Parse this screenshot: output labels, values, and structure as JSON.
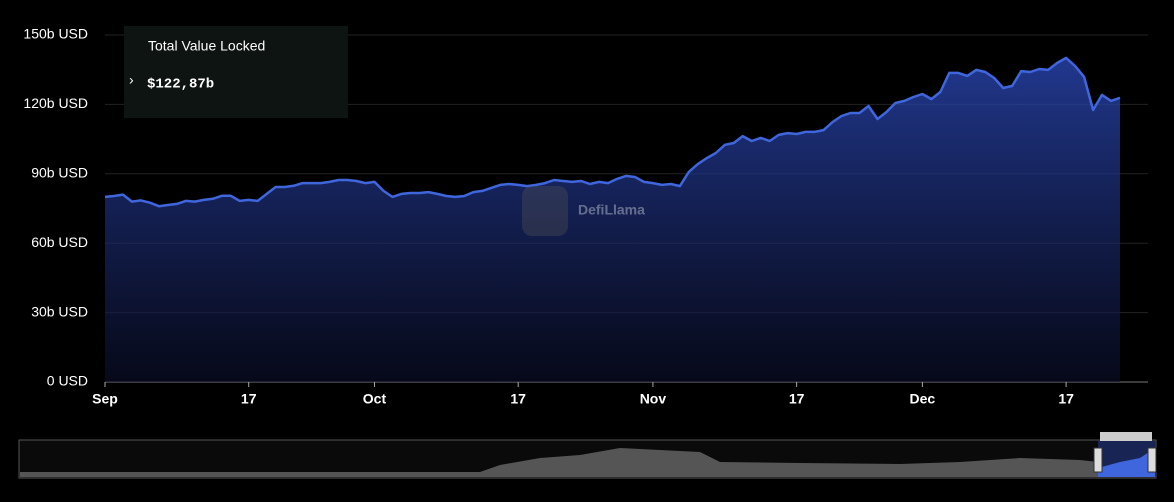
{
  "chart_data": {
    "type": "area",
    "series": [
      {
        "name": "Total Value Locked",
        "color": "#3f66dc",
        "values": [
          80.0,
          80.4,
          81.0,
          78.0,
          78.5,
          77.5,
          76.0,
          76.5,
          77.0,
          78.3,
          78.0,
          78.7,
          79.2,
          80.5,
          80.5,
          78.3,
          78.7,
          78.3,
          81.3,
          84.3,
          84.3,
          84.8,
          86.0,
          86.0,
          86.0,
          86.5,
          87.3,
          87.3,
          86.9,
          86.0,
          86.5,
          82.6,
          80.0,
          81.3,
          81.7,
          81.7,
          82.1,
          81.3,
          80.4,
          80.0,
          80.4,
          82.1,
          82.6,
          83.9,
          85.2,
          85.6,
          85.2,
          84.7,
          85.2,
          86.0,
          87.3,
          86.9,
          86.5,
          86.9,
          85.6,
          86.5,
          86.0,
          87.8,
          89.1,
          88.6,
          86.5,
          86.0,
          85.2,
          85.6,
          84.7,
          90.8,
          94.2,
          96.8,
          99.0,
          102.5,
          103.3,
          106.3,
          104.2,
          105.5,
          104.2,
          106.8,
          107.6,
          107.2,
          108.1,
          108.1,
          108.9,
          112.4,
          115.0,
          116.3,
          116.3,
          119.3,
          113.7,
          116.7,
          120.6,
          121.5,
          123.2,
          124.5,
          122.3,
          125.4,
          133.6,
          133.6,
          132.3,
          134.9,
          134.0,
          131.4,
          127.1,
          128.0,
          134.4,
          134.0,
          135.3,
          134.9,
          137.9,
          140.1,
          136.6,
          131.9,
          117.6,
          124.1,
          121.5,
          122.87
        ]
      }
    ],
    "categories": [
      "Sep",
      null,
      null,
      null,
      null,
      null,
      null,
      null,
      null,
      null,
      null,
      null,
      null,
      null,
      null,
      null,
      "17",
      null,
      null,
      null,
      null,
      null,
      null,
      null,
      null,
      null,
      null,
      null,
      null,
      null,
      "Oct",
      null,
      null,
      null,
      null,
      null,
      null,
      null,
      null,
      null,
      null,
      null,
      null,
      null,
      null,
      null,
      "17",
      null,
      null,
      null,
      null,
      null,
      null,
      null,
      null,
      null,
      null,
      null,
      null,
      null,
      null,
      "Nov",
      null,
      null,
      null,
      null,
      null,
      null,
      null,
      null,
      null,
      null,
      null,
      null,
      null,
      null,
      null,
      "17",
      null,
      null,
      null,
      null,
      null,
      null,
      null,
      null,
      null,
      null,
      null,
      null,
      null,
      "Dec",
      null,
      null,
      null,
      null,
      null,
      null,
      null,
      null,
      null,
      null,
      null,
      null,
      null,
      null,
      null,
      "17",
      null,
      null,
      null,
      null,
      null,
      null
    ],
    "ylim": [
      0,
      150
    ],
    "yticks": [
      {
        "value": 0,
        "label": "0 USD"
      },
      {
        "value": 30,
        "label": "30b USD"
      },
      {
        "value": 60,
        "label": "60b USD"
      },
      {
        "value": 90,
        "label": "90b USD"
      },
      {
        "value": 120,
        "label": "120b USD"
      },
      {
        "value": 150,
        "label": "150b USD"
      }
    ],
    "grid": true,
    "annotations": {
      "tooltip_title": "Total Value Locked",
      "tooltip_value": "$122,87b",
      "watermark": "DefiLlama"
    }
  }
}
